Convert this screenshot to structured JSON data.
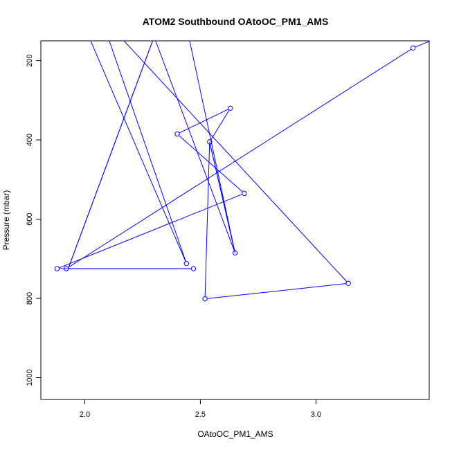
{
  "chart_data": {
    "type": "line",
    "title": "ATOM2 Southbound OAtoOC_PM1_AMS",
    "xlabel": "OAtoOC_PM1_AMS",
    "ylabel": "Pressure (mbar)",
    "xlim": [
      1.81,
      3.49
    ],
    "ylim": [
      1055,
      150
    ],
    "y_reversed": true,
    "xticks": [
      2.0,
      2.5,
      3.0
    ],
    "xtick_labels": [
      "2.0",
      "2.5",
      "3.0"
    ],
    "yticks": [
      200,
      400,
      600,
      800,
      1000
    ],
    "ytick_labels": [
      "200",
      "400",
      "600",
      "800",
      "1000"
    ],
    "series": [
      {
        "color": "#0000ff",
        "marker": "open-circle",
        "points": [
          {
            "x": 3.62,
            "y": 120,
            "marker": false
          },
          {
            "x": 3.42,
            "y": 168
          },
          {
            "x": 1.92,
            "y": 725
          },
          {
            "x": 2.47,
            "y": 725
          },
          {
            "x": 1.88,
            "y": 725
          },
          {
            "x": 2.69,
            "y": 535
          },
          {
            "x": 2.4,
            "y": 385
          },
          {
            "x": 2.63,
            "y": 320
          },
          {
            "x": 2.54,
            "y": 405
          },
          {
            "x": 2.52,
            "y": 801
          },
          {
            "x": 3.14,
            "y": 762
          },
          {
            "x": 1.9,
            "y": -20,
            "marker": false
          },
          {
            "x": 2.44,
            "y": 712
          },
          {
            "x": 2.1,
            "y": 140,
            "marker": false
          },
          {
            "x": 2.3,
            "y": 140,
            "marker": false
          },
          {
            "x": 1.93,
            "y": 722,
            "marker": false
          },
          {
            "x": 2.3,
            "y": 140,
            "marker": false
          },
          {
            "x": 2.65,
            "y": 685
          },
          {
            "x": 2.54,
            "y": 405,
            "marker": false
          },
          {
            "x": 2.65,
            "y": 685,
            "marker": false
          },
          {
            "x": 2.45,
            "y": 140,
            "marker": false
          }
        ]
      }
    ]
  }
}
